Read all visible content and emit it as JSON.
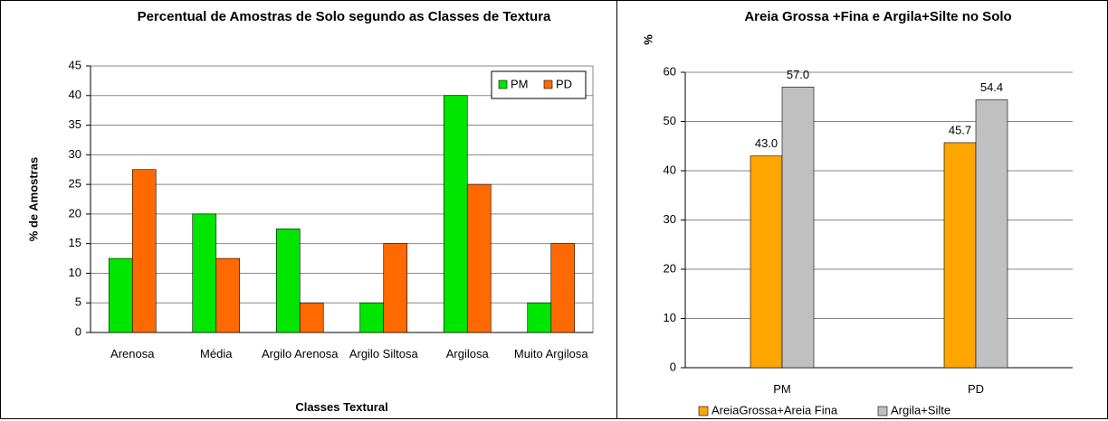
{
  "chart_data": [
    {
      "type": "bar",
      "title": "Percentual de Amostras de Solo segundo as Classes de Textura",
      "xlabel": "Classes Textural",
      "ylabel": "% de Amostras",
      "categories": [
        "Arenosa",
        "Média",
        "Argilo Arenosa",
        "Argilo Siltosa",
        "Argilosa",
        "Muito Argilosa"
      ],
      "series": [
        {
          "name": "PM",
          "color": "#00e600",
          "values": [
            12.5,
            20,
            17.5,
            5,
            40,
            5
          ]
        },
        {
          "name": "PD",
          "color": "#ff6a00",
          "values": [
            27.5,
            12.5,
            5,
            15,
            25,
            15
          ]
        }
      ],
      "ylim": [
        0,
        45
      ],
      "yticks": [
        0,
        5,
        10,
        15,
        20,
        25,
        30,
        35,
        40,
        45
      ],
      "grid": true,
      "legend": "top-right"
    },
    {
      "type": "bar",
      "title": "Areia Grossa +Fina e Argila+Silte no Solo",
      "ylabel": "%",
      "categories": [
        "PM",
        "PD"
      ],
      "series": [
        {
          "name": "AreiaGrossa+Areia Fina",
          "color": "#ffa500",
          "values": [
            43.0,
            45.7
          ],
          "value_labels": [
            "43.0",
            "45.7"
          ]
        },
        {
          "name": "Argila+Silte",
          "color": "#c0c0c0",
          "values": [
            57.0,
            54.4
          ],
          "value_labels": [
            "57.0",
            "54.4"
          ]
        }
      ],
      "ylim": [
        0,
        60
      ],
      "yticks": [
        0,
        10,
        20,
        30,
        40,
        50,
        60
      ],
      "grid": true,
      "legend": "bottom"
    }
  ]
}
